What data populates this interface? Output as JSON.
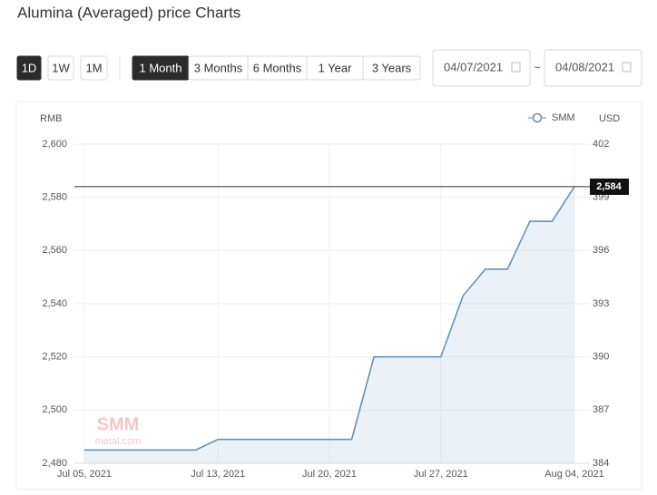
{
  "header": {
    "title": "Alumina (Averaged) price Charts"
  },
  "controls": {
    "periods": [
      "1D",
      "1W",
      "1M"
    ],
    "ranges": [
      "1 Month",
      "3 Months",
      "6 Months",
      "1 Year",
      "3 Years"
    ],
    "start_date": "04/07/2021",
    "separator": "~",
    "end_date": "04/08/2021"
  },
  "chart_data": {
    "type": "line",
    "y_label": "RMB",
    "y2_label": "USD",
    "categories": [
      "Jul 05, 2021",
      null,
      null,
      null,
      null,
      null,
      "Jul 13, 2021",
      null,
      null,
      null,
      null,
      "Jul 20, 2021",
      null,
      null,
      null,
      null,
      "Jul 27, 2021",
      null,
      null,
      null,
      null,
      null,
      "Aug 04, 2021"
    ],
    "series": [
      {
        "name": "SMM",
        "color": "#5b8db8",
        "values": [
          2485,
          2485,
          2485,
          2485,
          2485,
          2485,
          2489,
          2489,
          2489,
          2489,
          2489,
          2489,
          2489,
          2520,
          2520,
          2520,
          2520,
          2543,
          2553,
          2553,
          2571,
          2571,
          2584
        ]
      }
    ],
    "ylim": [
      2480,
      2600
    ],
    "yticks": [
      {
        "value": 2480,
        "label": "2,480"
      },
      {
        "value": 2500,
        "label": "2,500"
      },
      {
        "value": 2520,
        "label": "2,520"
      },
      {
        "value": 2540,
        "label": "2,540"
      },
      {
        "value": 2560,
        "label": "2,560"
      },
      {
        "value": 2580,
        "label": "2,580"
      },
      {
        "value": 2600,
        "label": "2,600"
      }
    ],
    "y2lim": [
      384,
      402
    ],
    "y2ticks": [
      384,
      387,
      390,
      393,
      396,
      399,
      402
    ],
    "highlight": {
      "value": 2584,
      "label": "2,584"
    },
    "watermark": [
      "SMM",
      "metal.com"
    ],
    "grid": true,
    "legend": "top-right"
  }
}
